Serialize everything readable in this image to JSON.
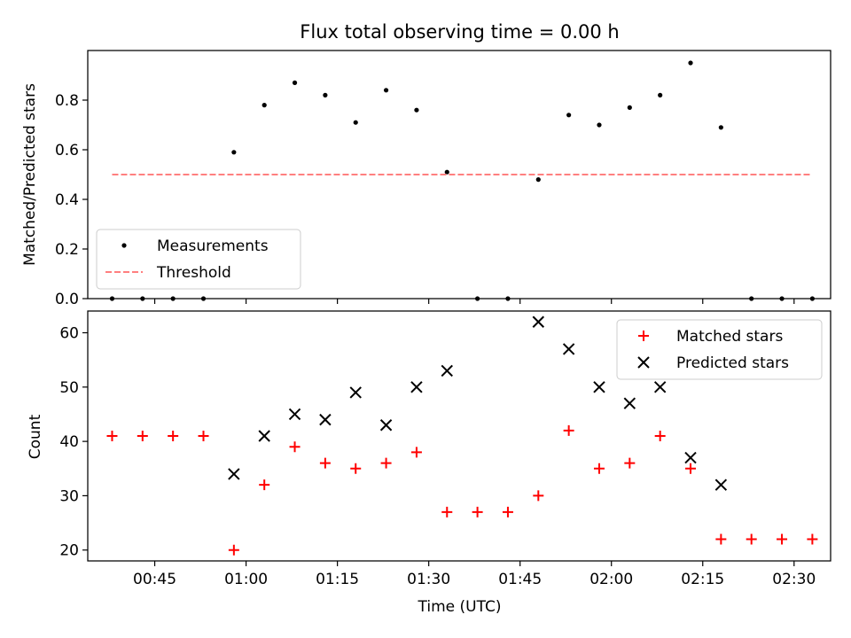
{
  "chart_data": [
    {
      "type": "scatter",
      "title": "Flux total observing time = 0.00 h",
      "xlabel": "",
      "ylabel": "Matched/Predicted stars",
      "xlim": [
        "00:34",
        "02:36"
      ],
      "ylim": [
        0,
        1.0
      ],
      "yticks": [
        0.0,
        0.2,
        0.4,
        0.6,
        0.8
      ],
      "ytick_labels": [
        "0.0",
        "0.2",
        "0.4",
        "0.6",
        "0.8"
      ],
      "grid": false,
      "legend": "lower-left",
      "series": [
        {
          "name": "Measurements",
          "marker": "dot",
          "color": "#000000",
          "x": [
            "00:38",
            "00:43",
            "00:48",
            "00:53",
            "00:58",
            "01:03",
            "01:08",
            "01:13",
            "01:18",
            "01:23",
            "01:28",
            "01:33",
            "01:38",
            "01:43",
            "01:48",
            "01:53",
            "01:58",
            "02:03",
            "02:08",
            "02:13",
            "02:18",
            "02:23",
            "02:28",
            "02:33"
          ],
          "y": [
            0,
            0,
            0,
            0,
            0.59,
            0.78,
            0.87,
            0.82,
            0.71,
            0.84,
            0.76,
            0.51,
            0,
            0,
            0.48,
            0.74,
            0.7,
            0.77,
            0.82,
            0.95,
            0.69,
            0,
            0,
            0
          ]
        },
        {
          "name": "Threshold",
          "marker": "dashed-line",
          "color": "#ff7f7f",
          "x": [
            "00:38",
            "02:33"
          ],
          "y": [
            0.5,
            0.5
          ]
        }
      ]
    },
    {
      "type": "scatter",
      "title": "",
      "xlabel": "Time (UTC)",
      "ylabel": "Count",
      "xlim": [
        "00:34",
        "02:36"
      ],
      "ylim": [
        18,
        64
      ],
      "xticks": [
        "00:45",
        "01:00",
        "01:15",
        "01:30",
        "01:45",
        "02:00",
        "02:15",
        "02:30"
      ],
      "yticks": [
        20,
        30,
        40,
        50,
        60
      ],
      "ytick_labels": [
        "20",
        "30",
        "40",
        "50",
        "60"
      ],
      "grid": false,
      "legend": "upper-right",
      "series": [
        {
          "name": "Matched stars",
          "marker": "plus",
          "color": "#ff0000",
          "x": [
            "00:38",
            "00:43",
            "00:48",
            "00:53",
            "00:58",
            "01:03",
            "01:08",
            "01:13",
            "01:18",
            "01:23",
            "01:28",
            "01:33",
            "01:38",
            "01:43",
            "01:48",
            "01:53",
            "01:58",
            "02:03",
            "02:08",
            "02:13",
            "02:18",
            "02:23",
            "02:28",
            "02:33"
          ],
          "y": [
            41,
            41,
            41,
            41,
            20,
            32,
            39,
            36,
            35,
            36,
            38,
            27,
            27,
            27,
            30,
            42,
            35,
            36,
            41,
            35,
            22,
            22,
            22,
            22
          ]
        },
        {
          "name": "Predicted stars",
          "marker": "x",
          "color": "#000000",
          "x": [
            "00:58",
            "01:03",
            "01:08",
            "01:13",
            "01:18",
            "01:23",
            "01:28",
            "01:33",
            "01:48",
            "01:53",
            "01:58",
            "02:03",
            "02:08",
            "02:13",
            "02:18"
          ],
          "y": [
            34,
            41,
            45,
            44,
            49,
            43,
            50,
            53,
            62,
            57,
            50,
            47,
            50,
            37,
            32
          ]
        }
      ]
    }
  ]
}
